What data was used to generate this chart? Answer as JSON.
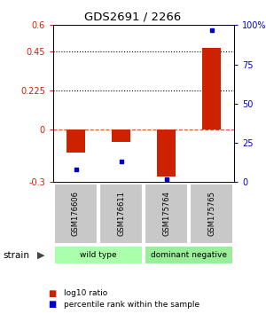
{
  "title": "GDS2691 / 2266",
  "samples": [
    "GSM176606",
    "GSM176611",
    "GSM175764",
    "GSM175765"
  ],
  "log10_ratio": [
    -0.13,
    -0.07,
    -0.27,
    0.47
  ],
  "percentile_rank": [
    8,
    13,
    2,
    97
  ],
  "groups": [
    {
      "label": "wild type",
      "samples": [
        0,
        1
      ],
      "color": "#aaffaa"
    },
    {
      "label": "dominant negative",
      "samples": [
        2,
        3
      ],
      "color": "#99ee99"
    }
  ],
  "left_yticks": [
    0.6,
    0.45,
    0.225,
    0,
    -0.3
  ],
  "left_yticklabels": [
    "0.6",
    "0.45",
    "0.225",
    "0",
    "-0.3"
  ],
  "right_yticks": [
    100,
    75,
    50,
    25,
    0
  ],
  "right_yticklabels": [
    "100%",
    "75",
    "50",
    "25",
    "0"
  ],
  "dotted_lines": [
    0.45,
    0.225
  ],
  "red_color": "#cc2200",
  "blue_color": "#0000cc",
  "bar_width": 0.4,
  "left_ylim": [
    -0.3,
    0.6
  ],
  "right_ylim": [
    0,
    100
  ],
  "legend_red": "log10 ratio",
  "legend_blue": "percentile rank within the sample",
  "strain_label": "strain"
}
